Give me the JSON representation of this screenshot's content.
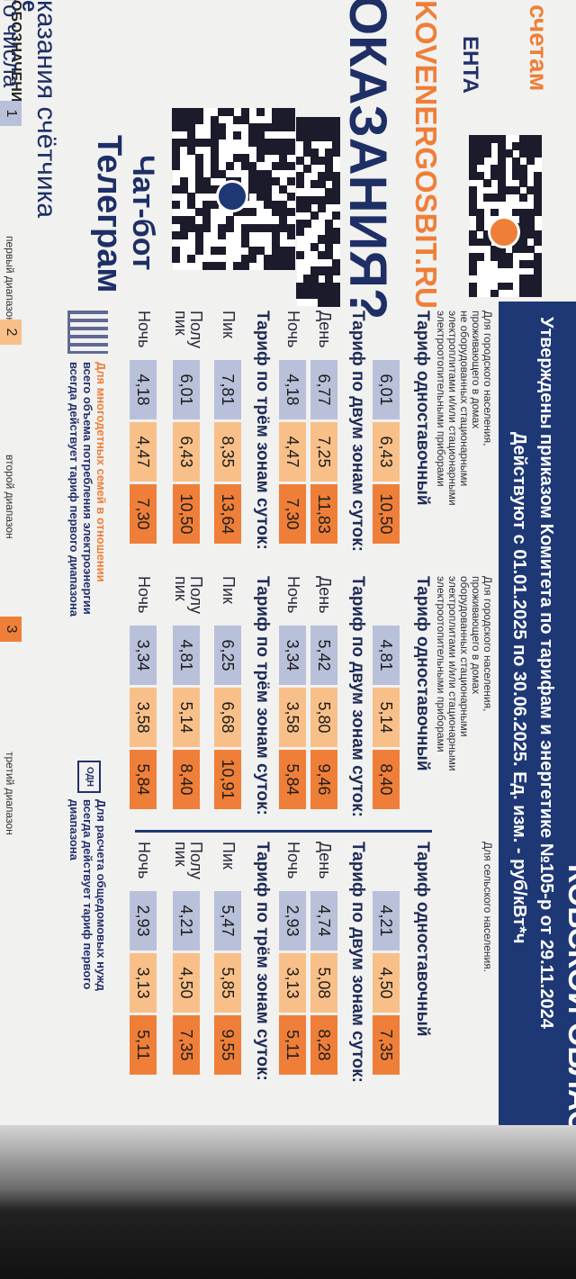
{
  "header": {
    "title_fragment": "КОВСКОЙ ОБЛАСТИ",
    "approval": "Утверждены приказом Комитета по тарифам и энергетике №105-р от 29.11.2024",
    "validity": "Действуют с 01.01.2025 по 30.06.2025. Ед. изм. - руб/кВт*ч"
  },
  "side_panel": {
    "accounts": "счетам",
    "fragment": "ЕНТА",
    "site": "KOVENERGOSBIT.RU",
    "readings": "ОКАЗАНИЯ?",
    "chat_bot": "Чат-бот",
    "telegram": "Телеграм",
    "meter": "казания счётчика",
    "date": "го числа",
    "letter": "е"
  },
  "columns": [
    {
      "description": [
        "Для городского населения,",
        "проживающего в домах",
        "не оборудованных стационарными",
        "электроплитами и/или стационарными",
        "электроотопительными приборами"
      ],
      "single": {
        "title": "Тариф одноставочный",
        "values": [
          "6,01",
          "6,43",
          "10,50"
        ]
      },
      "two_zone": {
        "title": "Тариф по двум зонам суток:",
        "rows": [
          {
            "label": [
              "День"
            ],
            "values": [
              "6,77",
              "7,25",
              "11,83"
            ]
          },
          {
            "label": [
              "Ночь"
            ],
            "values": [
              "4,18",
              "4,47",
              "7,30"
            ]
          }
        ]
      },
      "three_zone": {
        "title": "Тариф по трём зонам суток:",
        "rows": [
          {
            "label": [
              "Пик"
            ],
            "values": [
              "7,81",
              "8,35",
              "13,64"
            ]
          },
          {
            "label": [
              "Полу",
              "пик"
            ],
            "values": [
              "6,01",
              "6,43",
              "10,50"
            ]
          },
          {
            "label": [
              "Ночь"
            ],
            "values": [
              "4,18",
              "4,47",
              "7,30"
            ]
          }
        ]
      }
    },
    {
      "description": [
        "Для городского населения,",
        "проживающего в домах",
        "оборудованных стационарными",
        "электроплитами и/или стационарными",
        "электроотопительными приборами"
      ],
      "single": {
        "title": "Тариф одноставочный",
        "values": [
          "4,81",
          "5,14",
          "8,40"
        ]
      },
      "two_zone": {
        "title": "Тариф по двум зонам суток:",
        "rows": [
          {
            "label": [
              "День"
            ],
            "values": [
              "5,42",
              "5,80",
              "9,46"
            ]
          },
          {
            "label": [
              "Ночь"
            ],
            "values": [
              "3,34",
              "3,58",
              "5,84"
            ]
          }
        ]
      },
      "three_zone": {
        "title": "Тариф по трём зонам суток:",
        "rows": [
          {
            "label": [
              "Пик"
            ],
            "values": [
              "6,25",
              "6,68",
              "10,91"
            ]
          },
          {
            "label": [
              "Полу",
              "пик"
            ],
            "values": [
              "4,81",
              "5,14",
              "8,40"
            ]
          },
          {
            "label": [
              "Ночь"
            ],
            "values": [
              "3,34",
              "3,58",
              "5,84"
            ]
          }
        ]
      }
    },
    {
      "description": [
        "Для сельского населения."
      ],
      "single": {
        "title": "Тариф одноставочный",
        "values": [
          "4,21",
          "4,50",
          "7,35"
        ]
      },
      "two_zone": {
        "title": "Тариф по двум зонам суток:",
        "rows": [
          {
            "label": [
              "День"
            ],
            "values": [
              "4,74",
              "5,08",
              "8,28"
            ]
          },
          {
            "label": [
              "Ночь"
            ],
            "values": [
              "2,93",
              "3,13",
              "5,11"
            ]
          }
        ]
      },
      "three_zone": {
        "title": "Тариф по трём зонам суток:",
        "rows": [
          {
            "label": [
              "Пик"
            ],
            "values": [
              "5,47",
              "5,85",
              "9,55"
            ]
          },
          {
            "label": [
              "Полу",
              "пик"
            ],
            "values": [
              "4,21",
              "4,50",
              "7,35"
            ]
          },
          {
            "label": [
              "Ночь"
            ],
            "values": [
              "2,93",
              "3,13",
              "5,11"
            ]
          }
        ]
      }
    }
  ],
  "notes": [
    {
      "lines": [
        "Для многодетных семей в отношении",
        "всего объема потребления электроэнергии",
        "всегда действует тариф первого диапазона"
      ]
    },
    {
      "icon": "ОДН",
      "lines": [
        "Для расчета общедомовых нужд",
        "всегда действует тариф первого",
        "диапазона"
      ]
    }
  ],
  "legend": {
    "title": "ОБОЗНАЧЕНИЯ:",
    "items": [
      {
        "number": "1",
        "label": "первый диапазон"
      },
      {
        "number": "2",
        "label": "второй диапазон"
      },
      {
        "number": "3",
        "label": "третий диапазон"
      }
    ]
  }
}
